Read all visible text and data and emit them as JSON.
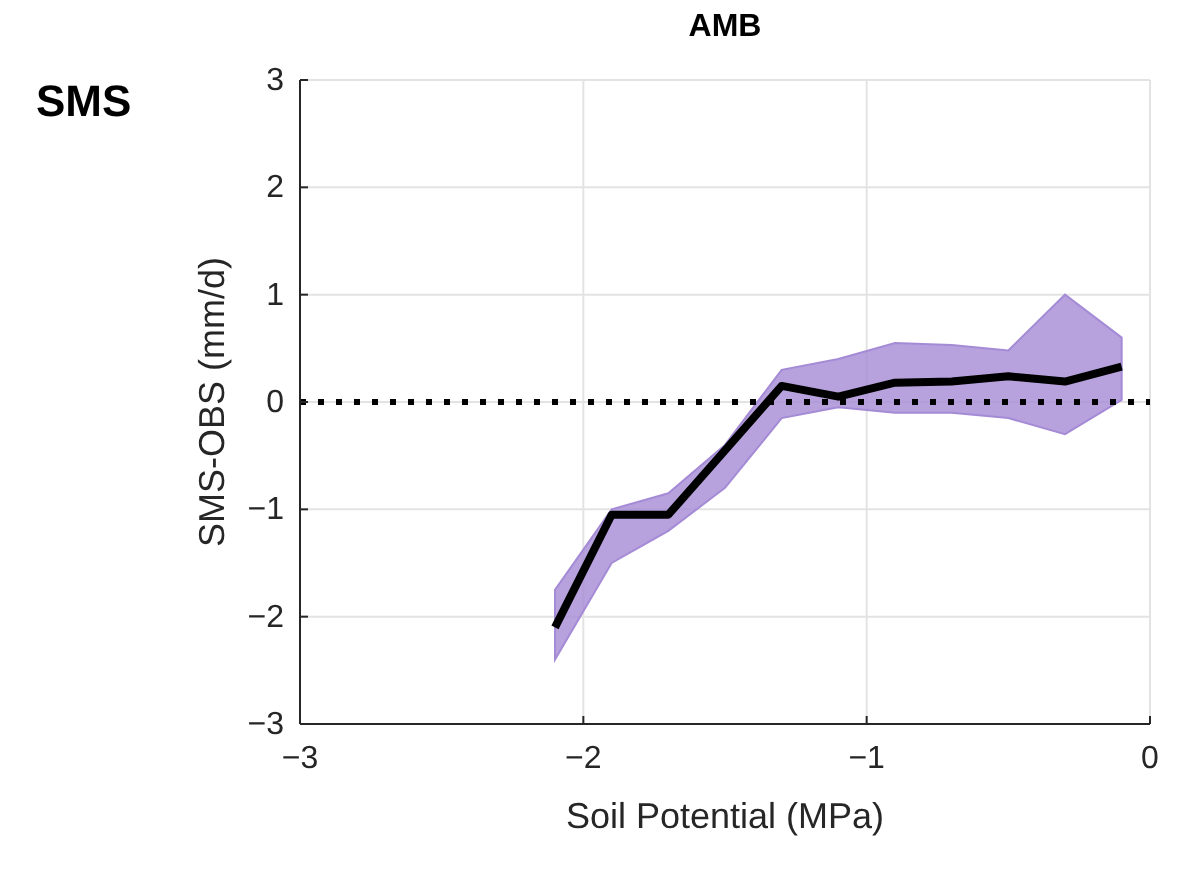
{
  "chart_data": {
    "type": "line",
    "title": "AMB",
    "xlabel": "Soil Potential (MPa)",
    "ylabel": "SMS-OBS (mm/d)",
    "annotations": [
      "SMS"
    ],
    "x": [
      -2.1,
      -1.9,
      -1.7,
      -1.5,
      -1.3,
      -1.1,
      -0.9,
      -0.7,
      -0.5,
      -0.3,
      -0.1
    ],
    "series": [
      {
        "color": "#000000",
        "values": [
          -2.1,
          -1.05,
          -1.05,
          -0.45,
          0.15,
          0.05,
          0.18,
          0.19,
          0.24,
          0.19,
          0.33
        ],
        "upper": [
          -1.75,
          -1.0,
          -0.85,
          -0.4,
          0.3,
          0.4,
          0.55,
          0.53,
          0.48,
          1.0,
          0.6
        ],
        "lower": [
          -2.4,
          -1.5,
          -1.2,
          -0.8,
          -0.15,
          -0.05,
          -0.1,
          -0.1,
          -0.15,
          -0.3,
          0.02
        ]
      }
    ],
    "xlim": [
      -3,
      0
    ],
    "xticks": [
      -3,
      -2,
      -1,
      0
    ],
    "ylim": [
      -3,
      3
    ],
    "yticks": [
      -3,
      -2,
      -1,
      0,
      1,
      2,
      3
    ],
    "grid": true,
    "ref_lines": [
      {
        "axis": "y",
        "value": 0,
        "color": "#000000",
        "line_style": "dotted"
      }
    ]
  }
}
